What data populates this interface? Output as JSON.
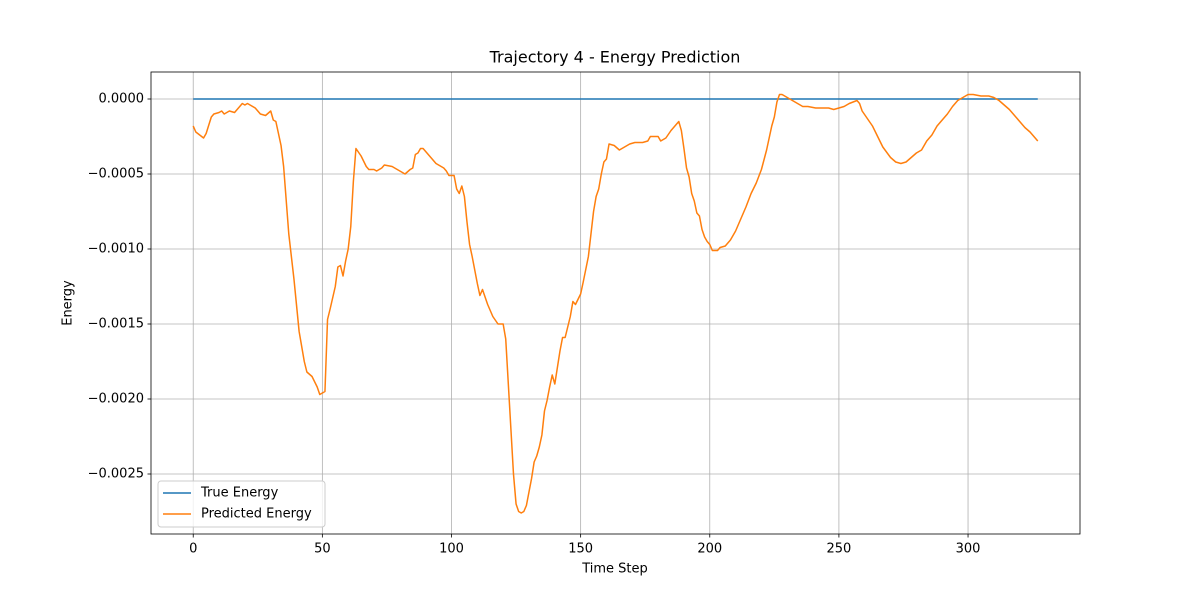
{
  "chart_data": {
    "type": "line",
    "title": "Trajectory 4 - Energy Prediction",
    "x_label": "Time Step",
    "y_label": "Energy",
    "xlim": [
      -16.35,
      343.35
    ],
    "xticks": [
      0,
      50,
      100,
      150,
      200,
      250,
      300
    ],
    "ylim": [
      -0.0029,
      0.00018
    ],
    "yticks": [
      {
        "value": 0,
        "label": "0.0000"
      },
      {
        "value": -0.0005,
        "label": "−0.0005"
      },
      {
        "value": -0.001,
        "label": "−0.0010"
      },
      {
        "value": -0.0015,
        "label": "−0.0015"
      },
      {
        "value": -0.002,
        "label": "−0.0020"
      },
      {
        "value": -0.0025,
        "label": "−0.0025"
      }
    ],
    "grid": true,
    "legend": "lower left",
    "series": [
      {
        "name": "True Energy",
        "color": "#1f77b4",
        "x": [
          0,
          327
        ],
        "values": [
          0,
          0
        ]
      },
      {
        "name": "Predicted Energy",
        "color": "#ff7f0e",
        "x": [
          0,
          1,
          4,
          5,
          7,
          8,
          10,
          11,
          12,
          14,
          16,
          18,
          19,
          20,
          21,
          24,
          26,
          28,
          30,
          31,
          32,
          34,
          35,
          37,
          39,
          41,
          43,
          44,
          46,
          48,
          49,
          51,
          52,
          53,
          55,
          56,
          57,
          58,
          59,
          60,
          61,
          62,
          63,
          65,
          67,
          68,
          70,
          71,
          73,
          74,
          77,
          80,
          82,
          84,
          85,
          86,
          87,
          88,
          89,
          90,
          92,
          94,
          96,
          97,
          98,
          99,
          101,
          102,
          103,
          104,
          105,
          106,
          107,
          108,
          110,
          111,
          112,
          114,
          116,
          118,
          120,
          121,
          122,
          123,
          124,
          125,
          126,
          127,
          128,
          129,
          130,
          131,
          132,
          133,
          134,
          135,
          136,
          137,
          138,
          139,
          140,
          141,
          142,
          143,
          144,
          146,
          147,
          148,
          150,
          151,
          153,
          154,
          155,
          156,
          157,
          158,
          159,
          160,
          161,
          163,
          165,
          167,
          169,
          171,
          174,
          176,
          177,
          180,
          181,
          183,
          185,
          187,
          188,
          189,
          190,
          191,
          192,
          193,
          194,
          195,
          196,
          197,
          198,
          199,
          200,
          201,
          203,
          204,
          206,
          208,
          210,
          212,
          214,
          216,
          218,
          220,
          222,
          224,
          225,
          226,
          227,
          228,
          230,
          232,
          234,
          236,
          238,
          241,
          243,
          246,
          248,
          250,
          252,
          254,
          257,
          258,
          259,
          261,
          263,
          265,
          267,
          270,
          272,
          274,
          276,
          278,
          280,
          282,
          284,
          286,
          288,
          290,
          292,
          294,
          296,
          298,
          300,
          302,
          305,
          308,
          310,
          312,
          314,
          316,
          318,
          320,
          322,
          324,
          326,
          327
        ],
        "values": [
          -0.00018,
          -0.00022,
          -0.00026,
          -0.00023,
          -0.00012,
          -0.0001,
          -9e-05,
          -8e-05,
          -0.0001,
          -8e-05,
          -9e-05,
          -5e-05,
          -3e-05,
          -4e-05,
          -3e-05,
          -6e-05,
          -0.0001,
          -0.00011,
          -8e-05,
          -0.00014,
          -0.00015,
          -0.00031,
          -0.00045,
          -0.0009,
          -0.0012,
          -0.00155,
          -0.00175,
          -0.00182,
          -0.00185,
          -0.00192,
          -0.00197,
          -0.00195,
          -0.00147,
          -0.0014,
          -0.00125,
          -0.00112,
          -0.00111,
          -0.00118,
          -0.00108,
          -0.001,
          -0.00085,
          -0.00055,
          -0.00033,
          -0.00038,
          -0.00045,
          -0.00047,
          -0.00047,
          -0.00048,
          -0.00046,
          -0.00044,
          -0.00045,
          -0.00048,
          -0.0005,
          -0.00047,
          -0.00046,
          -0.00037,
          -0.00036,
          -0.00033,
          -0.00033,
          -0.00035,
          -0.00039,
          -0.00043,
          -0.00045,
          -0.00046,
          -0.00048,
          -0.00051,
          -0.00051,
          -0.0006,
          -0.00063,
          -0.00058,
          -0.00065,
          -0.00082,
          -0.00097,
          -0.00105,
          -0.00123,
          -0.00131,
          -0.00127,
          -0.00137,
          -0.00145,
          -0.0015,
          -0.0015,
          -0.0016,
          -0.0019,
          -0.0022,
          -0.0025,
          -0.0027,
          -0.00275,
          -0.00276,
          -0.00275,
          -0.00271,
          -0.00262,
          -0.00253,
          -0.00242,
          -0.00238,
          -0.00232,
          -0.00224,
          -0.00208,
          -0.00201,
          -0.00192,
          -0.00184,
          -0.0019,
          -0.00179,
          -0.00168,
          -0.00159,
          -0.00159,
          -0.00145,
          -0.00135,
          -0.00137,
          -0.0013,
          -0.00122,
          -0.00105,
          -0.0009,
          -0.00075,
          -0.00065,
          -0.0006,
          -0.0005,
          -0.00042,
          -0.0004,
          -0.0003,
          -0.00031,
          -0.00034,
          -0.00032,
          -0.0003,
          -0.00029,
          -0.00029,
          -0.00028,
          -0.00025,
          -0.00025,
          -0.00028,
          -0.00026,
          -0.00021,
          -0.00017,
          -0.00015,
          -0.00021,
          -0.00033,
          -0.00046,
          -0.00052,
          -0.00063,
          -0.00068,
          -0.00076,
          -0.00078,
          -0.00087,
          -0.00092,
          -0.00095,
          -0.00097,
          -0.00101,
          -0.00101,
          -0.00099,
          -0.00098,
          -0.00094,
          -0.00088,
          -0.0008,
          -0.00072,
          -0.00063,
          -0.00056,
          -0.00047,
          -0.00034,
          -0.00018,
          -0.00012,
          -2e-05,
          3e-05,
          3e-05,
          1e-05,
          -1e-05,
          -3e-05,
          -5e-05,
          -5e-05,
          -6e-05,
          -6e-05,
          -6e-05,
          -7e-05,
          -6e-05,
          -5e-05,
          -3e-05,
          -1e-05,
          -3e-05,
          -8e-05,
          -0.00013,
          -0.00018,
          -0.00025,
          -0.00032,
          -0.00039,
          -0.00042,
          -0.00043,
          -0.00042,
          -0.00039,
          -0.00036,
          -0.00034,
          -0.00028,
          -0.00024,
          -0.00018,
          -0.00014,
          -0.0001,
          -5e-05,
          -1e-05,
          1e-05,
          3e-05,
          3e-05,
          2e-05,
          2e-05,
          1e-05,
          -1e-05,
          -4e-05,
          -7e-05,
          -0.00011,
          -0.00015,
          -0.00019,
          -0.00022,
          -0.00026,
          -0.00028
        ]
      }
    ]
  }
}
